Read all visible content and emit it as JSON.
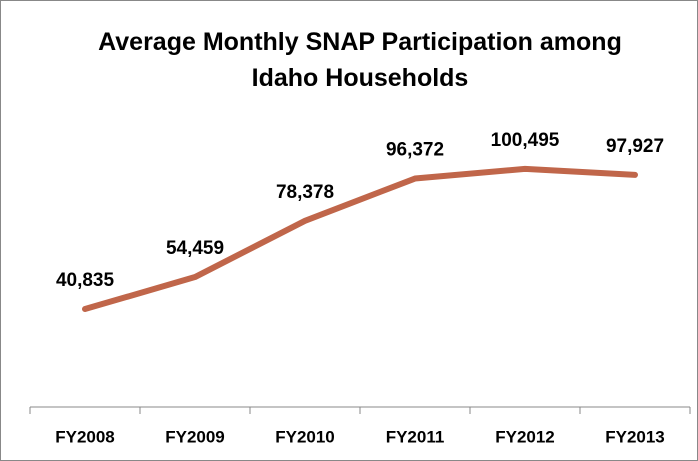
{
  "chart_data": {
    "type": "line",
    "title": "Average Monthly SNAP Participation among Idaho Households",
    "categories": [
      "FY2008",
      "FY2009",
      "FY2010",
      "FY2011",
      "FY2012",
      "FY2013"
    ],
    "series": [
      {
        "name": "Households",
        "color": "#c0664a",
        "values": [
          40835,
          54459,
          78378,
          96372,
          100495,
          97927
        ],
        "value_labels": [
          "40,835",
          "54,459",
          "78,378",
          "96,372",
          "100,495",
          "97,927"
        ]
      }
    ],
    "ylim": [
      0,
      120000
    ],
    "grid": false
  }
}
